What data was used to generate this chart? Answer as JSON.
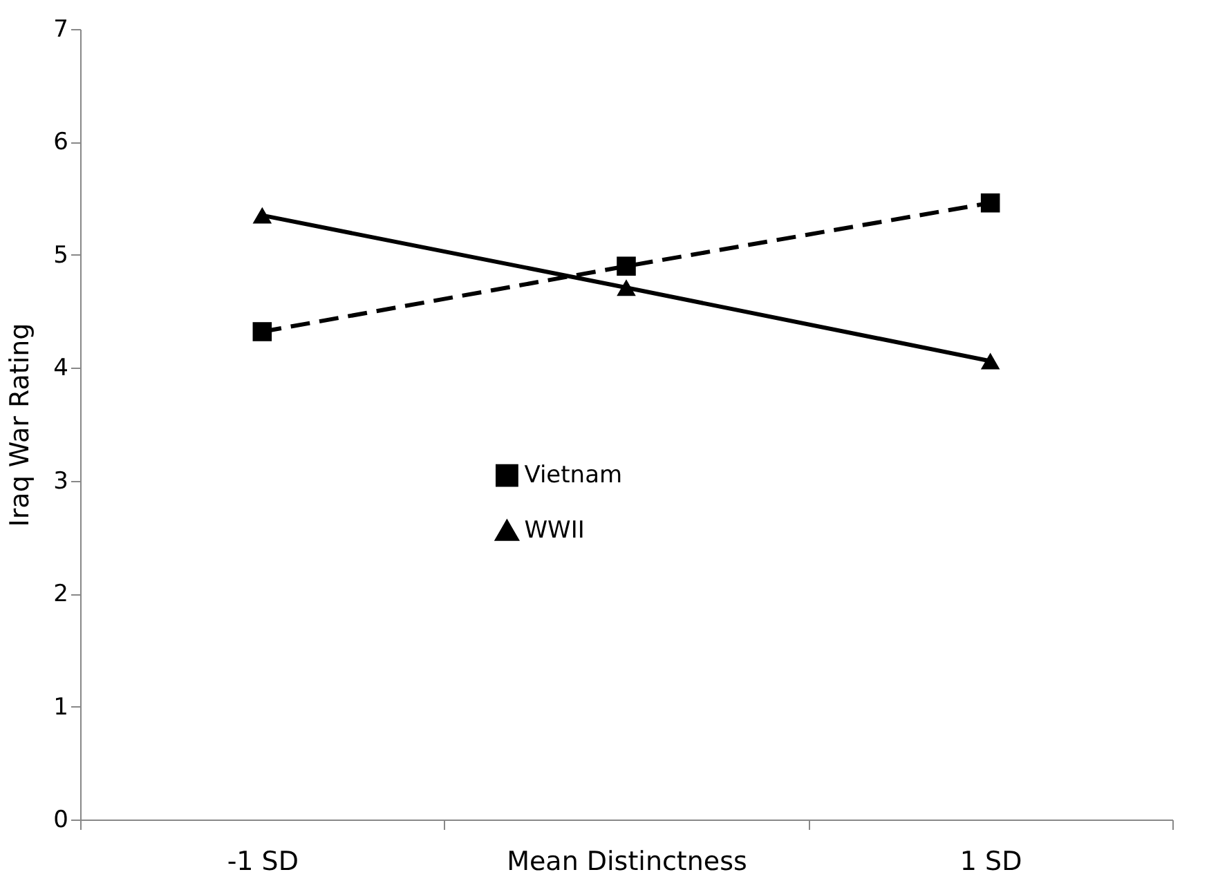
{
  "chart_data": {
    "type": "line",
    "xlabel": null,
    "ylabel": "Iraq War Rating",
    "categories": [
      "-1 SD",
      "Mean Distinctness",
      "1 SD"
    ],
    "series": [
      {
        "name": "Vietnam",
        "color": "#000000",
        "values": [
          4.32,
          4.9,
          5.46
        ],
        "marker": "square",
        "line_style": "dashed"
      },
      {
        "name": "WWII",
        "color": "#000000",
        "values": [
          5.35,
          4.71,
          4.06
        ],
        "marker": "triangle",
        "line_style": "solid"
      }
    ],
    "ylim": [
      0,
      7
    ],
    "yticks": [
      0,
      1,
      2,
      3,
      4,
      5,
      6,
      7
    ],
    "grid": false,
    "legend": "center"
  }
}
